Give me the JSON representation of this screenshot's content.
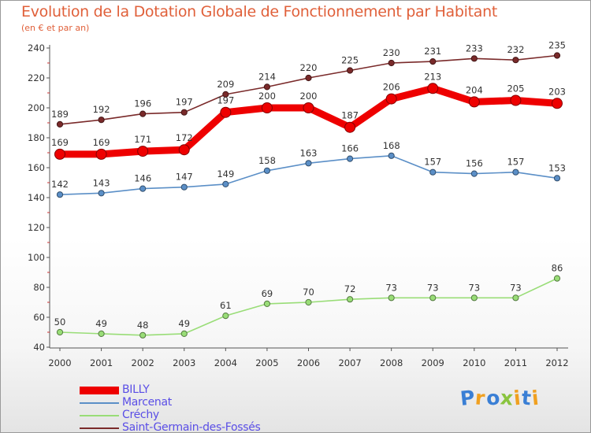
{
  "chart_data": {
    "type": "line",
    "title": "Evolution de la Dotation Globale de Fonctionnement par Habitant",
    "subtitle": "(en € et par an)",
    "xlabel": "",
    "ylabel": "",
    "categories": [
      "2000",
      "2001",
      "2002",
      "2003",
      "2004",
      "2005",
      "2006",
      "2007",
      "2008",
      "2009",
      "2010",
      "2011",
      "2012"
    ],
    "ylim": [
      40,
      240
    ],
    "yticks": [
      40,
      60,
      80,
      100,
      120,
      140,
      160,
      180,
      200,
      220,
      240
    ],
    "grid": false,
    "legend_position": "bottom-left",
    "series": [
      {
        "name": "BILLY",
        "color": "#ee0000",
        "values": [
          169,
          169,
          171,
          172,
          197,
          200,
          200,
          187,
          206,
          213,
          204,
          205,
          203
        ]
      },
      {
        "name": "Marcenat",
        "color": "#5b8fc7",
        "values": [
          142,
          143,
          146,
          147,
          149,
          158,
          163,
          166,
          168,
          157,
          156,
          157,
          153
        ]
      },
      {
        "name": "Créchy",
        "color": "#99dd77",
        "values": [
          50,
          49,
          48,
          49,
          61,
          69,
          70,
          72,
          73,
          73,
          73,
          73,
          86
        ]
      },
      {
        "name": "Saint-Germain-des-Fossés",
        "color": "#7a2a2a",
        "values": [
          189,
          192,
          196,
          197,
          209,
          214,
          220,
          225,
          230,
          231,
          233,
          232,
          235
        ]
      }
    ]
  },
  "logo": {
    "letters": [
      "P",
      "r",
      "o",
      "x",
      "i",
      "t",
      "i"
    ],
    "colors": [
      "#3a7fd5",
      "#f0a020",
      "#3a7fd5",
      "#8ac43f",
      "#f0a020",
      "#3a7fd5",
      "#f0a020"
    ]
  }
}
